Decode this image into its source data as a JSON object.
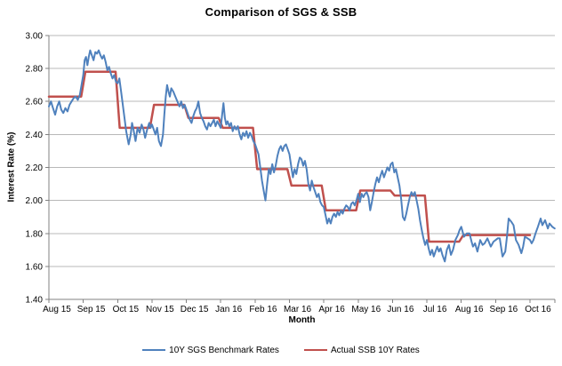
{
  "title": "Comparison of SGS & SSB",
  "y_axis": {
    "label": "Interest Rate (%)"
  },
  "x_axis": {
    "label": "Month"
  },
  "legend": [
    {
      "label": "10Y SGS Benchmark Rates",
      "color": "#4F81BD"
    },
    {
      "label": "Actual SSB 10Y Rates",
      "color": "#C0504D"
    }
  ],
  "colors": {
    "sgs_blue": "#4F81BD",
    "ssb_red": "#C0504D",
    "gridline": "#b8b8b8",
    "axis": "#808080",
    "text": "#000000"
  },
  "chart_data": {
    "type": "line",
    "title": "Comparison of SGS & SSB",
    "xlabel": "Month",
    "ylabel": "Interest Rate (%)",
    "ylim": [
      1.4,
      3.0
    ],
    "ytick_step": 0.2,
    "yticks": [
      1.4,
      1.6,
      1.8,
      2.0,
      2.2,
      2.4,
      2.6,
      2.8,
      3.0
    ],
    "grid": "horizontal",
    "legend_position": "bottom",
    "x_categories": [
      "Aug 15",
      "Sep 15",
      "Oct 15",
      "Nov 15",
      "Dec 15",
      "Jan 16",
      "Feb 16",
      "Mar 16",
      "Apr 16",
      "May 16",
      "Jun 16",
      "Jul 16",
      "Aug 16",
      "Sep 16",
      "Oct 16"
    ],
    "series": [
      {
        "name": "10Y SGS Benchmark Rates",
        "color": "#4F81BD",
        "style": "daily-line",
        "x_unit": "month-index (0 = Aug 15 tick)",
        "points": [
          [
            0.0,
            2.57
          ],
          [
            0.06,
            2.6
          ],
          [
            0.12,
            2.56
          ],
          [
            0.18,
            2.52
          ],
          [
            0.24,
            2.57
          ],
          [
            0.3,
            2.6
          ],
          [
            0.36,
            2.55
          ],
          [
            0.42,
            2.53
          ],
          [
            0.48,
            2.56
          ],
          [
            0.54,
            2.54
          ],
          [
            0.6,
            2.58
          ],
          [
            0.66,
            2.6
          ],
          [
            0.72,
            2.62
          ],
          [
            0.78,
            2.63
          ],
          [
            0.84,
            2.61
          ],
          [
            0.9,
            2.64
          ],
          [
            0.95,
            2.7
          ],
          [
            1.0,
            2.76
          ],
          [
            1.04,
            2.85
          ],
          [
            1.08,
            2.87
          ],
          [
            1.12,
            2.82
          ],
          [
            1.16,
            2.87
          ],
          [
            1.2,
            2.91
          ],
          [
            1.25,
            2.88
          ],
          [
            1.3,
            2.85
          ],
          [
            1.35,
            2.9
          ],
          [
            1.4,
            2.89
          ],
          [
            1.45,
            2.91
          ],
          [
            1.5,
            2.88
          ],
          [
            1.55,
            2.86
          ],
          [
            1.6,
            2.88
          ],
          [
            1.65,
            2.84
          ],
          [
            1.7,
            2.79
          ],
          [
            1.75,
            2.81
          ],
          [
            1.8,
            2.77
          ],
          [
            1.85,
            2.74
          ],
          [
            1.9,
            2.76
          ],
          [
            1.95,
            2.72
          ],
          [
            2.0,
            2.71
          ],
          [
            2.05,
            2.74
          ],
          [
            2.1,
            2.66
          ],
          [
            2.15,
            2.58
          ],
          [
            2.2,
            2.5
          ],
          [
            2.25,
            2.42
          ],
          [
            2.32,
            2.34
          ],
          [
            2.38,
            2.4
          ],
          [
            2.42,
            2.47
          ],
          [
            2.46,
            2.43
          ],
          [
            2.52,
            2.36
          ],
          [
            2.58,
            2.44
          ],
          [
            2.64,
            2.41
          ],
          [
            2.7,
            2.46
          ],
          [
            2.75,
            2.43
          ],
          [
            2.8,
            2.38
          ],
          [
            2.86,
            2.43
          ],
          [
            2.92,
            2.47
          ],
          [
            2.96,
            2.44
          ],
          [
            3.0,
            2.46
          ],
          [
            3.05,
            2.43
          ],
          [
            3.1,
            2.4
          ],
          [
            3.15,
            2.44
          ],
          [
            3.2,
            2.36
          ],
          [
            3.26,
            2.33
          ],
          [
            3.32,
            2.4
          ],
          [
            3.36,
            2.52
          ],
          [
            3.4,
            2.63
          ],
          [
            3.44,
            2.7
          ],
          [
            3.48,
            2.66
          ],
          [
            3.52,
            2.63
          ],
          [
            3.56,
            2.68
          ],
          [
            3.62,
            2.66
          ],
          [
            3.68,
            2.63
          ],
          [
            3.74,
            2.6
          ],
          [
            3.8,
            2.57
          ],
          [
            3.85,
            2.6
          ],
          [
            3.9,
            2.56
          ],
          [
            3.95,
            2.58
          ],
          [
            4.0,
            2.55
          ],
          [
            4.05,
            2.52
          ],
          [
            4.1,
            2.49
          ],
          [
            4.15,
            2.47
          ],
          [
            4.2,
            2.51
          ],
          [
            4.25,
            2.54
          ],
          [
            4.3,
            2.56
          ],
          [
            4.35,
            2.6
          ],
          [
            4.4,
            2.53
          ],
          [
            4.45,
            2.5
          ],
          [
            4.5,
            2.48
          ],
          [
            4.55,
            2.45
          ],
          [
            4.6,
            2.43
          ],
          [
            4.65,
            2.47
          ],
          [
            4.7,
            2.45
          ],
          [
            4.75,
            2.47
          ],
          [
            4.8,
            2.49
          ],
          [
            4.85,
            2.45
          ],
          [
            4.9,
            2.48
          ],
          [
            4.95,
            2.46
          ],
          [
            5.0,
            2.44
          ],
          [
            5.04,
            2.52
          ],
          [
            5.08,
            2.59
          ],
          [
            5.12,
            2.5
          ],
          [
            5.16,
            2.46
          ],
          [
            5.2,
            2.48
          ],
          [
            5.25,
            2.45
          ],
          [
            5.3,
            2.47
          ],
          [
            5.35,
            2.42
          ],
          [
            5.4,
            2.45
          ],
          [
            5.45,
            2.43
          ],
          [
            5.5,
            2.45
          ],
          [
            5.55,
            2.4
          ],
          [
            5.6,
            2.37
          ],
          [
            5.65,
            2.41
          ],
          [
            5.7,
            2.39
          ],
          [
            5.75,
            2.42
          ],
          [
            5.8,
            2.38
          ],
          [
            5.85,
            2.41
          ],
          [
            5.9,
            2.39
          ],
          [
            5.95,
            2.36
          ],
          [
            6.0,
            2.34
          ],
          [
            6.05,
            2.31
          ],
          [
            6.1,
            2.28
          ],
          [
            6.15,
            2.2
          ],
          [
            6.2,
            2.12
          ],
          [
            6.25,
            2.06
          ],
          [
            6.3,
            2.0
          ],
          [
            6.35,
            2.1
          ],
          [
            6.4,
            2.19
          ],
          [
            6.45,
            2.16
          ],
          [
            6.5,
            2.22
          ],
          [
            6.55,
            2.17
          ],
          [
            6.6,
            2.21
          ],
          [
            6.65,
            2.27
          ],
          [
            6.7,
            2.31
          ],
          [
            6.75,
            2.33
          ],
          [
            6.8,
            2.3
          ],
          [
            6.85,
            2.33
          ],
          [
            6.9,
            2.34
          ],
          [
            6.95,
            2.31
          ],
          [
            7.0,
            2.28
          ],
          [
            7.05,
            2.21
          ],
          [
            7.1,
            2.14
          ],
          [
            7.15,
            2.19
          ],
          [
            7.2,
            2.16
          ],
          [
            7.25,
            2.22
          ],
          [
            7.3,
            2.26
          ],
          [
            7.35,
            2.25
          ],
          [
            7.4,
            2.21
          ],
          [
            7.45,
            2.24
          ],
          [
            7.5,
            2.19
          ],
          [
            7.55,
            2.1
          ],
          [
            7.6,
            2.06
          ],
          [
            7.65,
            2.12
          ],
          [
            7.7,
            2.08
          ],
          [
            7.75,
            2.05
          ],
          [
            7.8,
            2.02
          ],
          [
            7.85,
            2.04
          ],
          [
            7.9,
            1.99
          ],
          [
            7.95,
            1.97
          ],
          [
            8.0,
            1.96
          ],
          [
            8.05,
            1.91
          ],
          [
            8.1,
            1.86
          ],
          [
            8.15,
            1.89
          ],
          [
            8.2,
            1.86
          ],
          [
            8.25,
            1.9
          ],
          [
            8.3,
            1.92
          ],
          [
            8.35,
            1.9
          ],
          [
            8.4,
            1.93
          ],
          [
            8.45,
            1.91
          ],
          [
            8.5,
            1.94
          ],
          [
            8.55,
            1.92
          ],
          [
            8.6,
            1.95
          ],
          [
            8.65,
            1.97
          ],
          [
            8.7,
            1.96
          ],
          [
            8.75,
            1.94
          ],
          [
            8.8,
            1.98
          ],
          [
            8.85,
            1.99
          ],
          [
            8.9,
            1.97
          ],
          [
            8.95,
            2.0
          ],
          [
            9.0,
            2.04
          ],
          [
            9.05,
            1.99
          ],
          [
            9.1,
            2.04
          ],
          [
            9.15,
            2.02
          ],
          [
            9.2,
            2.04
          ],
          [
            9.25,
            2.05
          ],
          [
            9.3,
            2.02
          ],
          [
            9.35,
            1.94
          ],
          [
            9.4,
            1.99
          ],
          [
            9.45,
            2.05
          ],
          [
            9.5,
            2.1
          ],
          [
            9.55,
            2.14
          ],
          [
            9.6,
            2.11
          ],
          [
            9.65,
            2.15
          ],
          [
            9.7,
            2.18
          ],
          [
            9.75,
            2.14
          ],
          [
            9.8,
            2.17
          ],
          [
            9.85,
            2.2
          ],
          [
            9.9,
            2.18
          ],
          [
            9.95,
            2.22
          ],
          [
            10.0,
            2.23
          ],
          [
            10.05,
            2.17
          ],
          [
            10.1,
            2.19
          ],
          [
            10.15,
            2.14
          ],
          [
            10.2,
            2.09
          ],
          [
            10.25,
            2.01
          ],
          [
            10.3,
            1.9
          ],
          [
            10.35,
            1.88
          ],
          [
            10.4,
            1.92
          ],
          [
            10.45,
            1.97
          ],
          [
            10.5,
            2.02
          ],
          [
            10.55,
            2.05
          ],
          [
            10.6,
            2.03
          ],
          [
            10.65,
            2.05
          ],
          [
            10.7,
            2.0
          ],
          [
            10.75,
            1.95
          ],
          [
            10.8,
            1.88
          ],
          [
            10.85,
            1.82
          ],
          [
            10.9,
            1.77
          ],
          [
            10.95,
            1.73
          ],
          [
            11.0,
            1.76
          ],
          [
            11.05,
            1.71
          ],
          [
            11.1,
            1.67
          ],
          [
            11.15,
            1.7
          ],
          [
            11.2,
            1.66
          ],
          [
            11.25,
            1.69
          ],
          [
            11.3,
            1.72
          ],
          [
            11.35,
            1.69
          ],
          [
            11.4,
            1.71
          ],
          [
            11.45,
            1.67
          ],
          [
            11.52,
            1.63
          ],
          [
            11.58,
            1.7
          ],
          [
            11.64,
            1.73
          ],
          [
            11.7,
            1.67
          ],
          [
            11.76,
            1.7
          ],
          [
            11.83,
            1.76
          ],
          [
            11.9,
            1.79
          ],
          [
            11.95,
            1.82
          ],
          [
            12.0,
            1.84
          ],
          [
            12.08,
            1.78
          ],
          [
            12.16,
            1.8
          ],
          [
            12.24,
            1.8
          ],
          [
            12.3,
            1.75
          ],
          [
            12.34,
            1.72
          ],
          [
            12.4,
            1.74
          ],
          [
            12.47,
            1.69
          ],
          [
            12.55,
            1.76
          ],
          [
            12.62,
            1.73
          ],
          [
            12.68,
            1.74
          ],
          [
            12.76,
            1.77
          ],
          [
            12.86,
            1.72
          ],
          [
            12.94,
            1.75
          ],
          [
            13.0,
            1.76
          ],
          [
            13.06,
            1.77
          ],
          [
            13.12,
            1.77
          ],
          [
            13.2,
            1.66
          ],
          [
            13.28,
            1.69
          ],
          [
            13.33,
            1.78
          ],
          [
            13.38,
            1.89
          ],
          [
            13.46,
            1.87
          ],
          [
            13.52,
            1.85
          ],
          [
            13.59,
            1.76
          ],
          [
            13.67,
            1.73
          ],
          [
            13.75,
            1.68
          ],
          [
            13.8,
            1.72
          ],
          [
            13.85,
            1.78
          ],
          [
            13.93,
            1.77
          ],
          [
            14.0,
            1.76
          ],
          [
            14.05,
            1.74
          ],
          [
            14.1,
            1.76
          ],
          [
            14.16,
            1.8
          ],
          [
            14.23,
            1.84
          ],
          [
            14.31,
            1.89
          ],
          [
            14.36,
            1.85
          ],
          [
            14.44,
            1.88
          ],
          [
            14.52,
            1.83
          ],
          [
            14.57,
            1.86
          ],
          [
            14.65,
            1.84
          ],
          [
            14.72,
            1.83
          ]
        ]
      },
      {
        "name": "Actual SSB 10Y Rates",
        "color": "#C0504D",
        "style": "step",
        "x_unit": "one value per month, Aug 15 through Sep 16",
        "monthly_values": [
          2.63,
          2.78,
          2.44,
          2.58,
          2.5,
          2.44,
          2.19,
          2.09,
          1.94,
          2.06,
          2.03,
          1.75,
          1.79,
          1.79
        ]
      }
    ]
  }
}
